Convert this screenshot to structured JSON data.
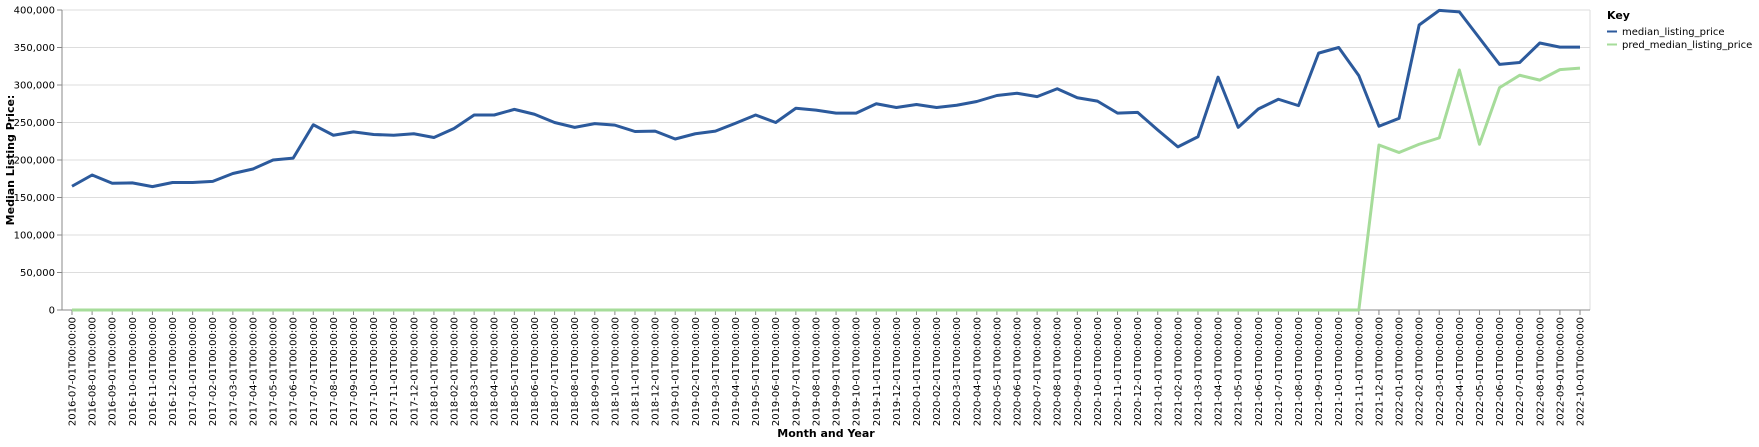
{
  "chart_data": {
    "type": "line",
    "xlabel": "Month and Year",
    "ylabel": "Median Listing Price:",
    "ylim": [
      0,
      400000
    ],
    "yticks": [
      "0",
      "50,000",
      "100,000",
      "150,000",
      "200,000",
      "250,000",
      "300,000",
      "350,000",
      "400,000"
    ],
    "grid": true,
    "legend": {
      "title": "Key",
      "placement": "top-right"
    },
    "x": [
      "2016-07-01T00:00:00",
      "2016-08-01T00:00:00",
      "2016-09-01T00:00:00",
      "2016-10-01T00:00:00",
      "2016-11-01T00:00:00",
      "2016-12-01T00:00:00",
      "2017-01-01T00:00:00",
      "2017-02-01T00:00:00",
      "2017-03-01T00:00:00",
      "2017-04-01T00:00:00",
      "2017-05-01T00:00:00",
      "2017-06-01T00:00:00",
      "2017-07-01T00:00:00",
      "2017-08-01T00:00:00",
      "2017-09-01T00:00:00",
      "2017-10-01T00:00:00",
      "2017-11-01T00:00:00",
      "2017-12-01T00:00:00",
      "2018-01-01T00:00:00",
      "2018-02-01T00:00:00",
      "2018-03-01T00:00:00",
      "2018-04-01T00:00:00",
      "2018-05-01T00:00:00",
      "2018-06-01T00:00:00",
      "2018-07-01T00:00:00",
      "2018-08-01T00:00:00",
      "2018-09-01T00:00:00",
      "2018-10-01T00:00:00",
      "2018-11-01T00:00:00",
      "2018-12-01T00:00:00",
      "2019-01-01T00:00:00",
      "2019-02-01T00:00:00",
      "2019-03-01T00:00:00",
      "2019-04-01T00:00:00",
      "2019-05-01T00:00:00",
      "2019-06-01T00:00:00",
      "2019-07-01T00:00:00",
      "2019-08-01T00:00:00",
      "2019-09-01T00:00:00",
      "2019-10-01T00:00:00",
      "2019-11-01T00:00:00",
      "2019-12-01T00:00:00",
      "2020-01-01T00:00:00",
      "2020-02-01T00:00:00",
      "2020-03-01T00:00:00",
      "2020-04-01T00:00:00",
      "2020-05-01T00:00:00",
      "2020-06-01T00:00:00",
      "2020-07-01T00:00:00",
      "2020-08-01T00:00:00",
      "2020-09-01T00:00:00",
      "2020-10-01T00:00:00",
      "2020-11-01T00:00:00",
      "2020-12-01T00:00:00",
      "2021-01-01T00:00:00",
      "2021-02-01T00:00:00",
      "2021-03-01T00:00:00",
      "2021-04-01T00:00:00",
      "2021-05-01T00:00:00",
      "2021-06-01T00:00:00",
      "2021-07-01T00:00:00",
      "2021-08-01T00:00:00",
      "2021-09-01T00:00:00",
      "2021-10-01T00:00:00",
      "2021-11-01T00:00:00",
      "2021-12-01T00:00:00",
      "2022-01-01T00:00:00",
      "2022-02-01T00:00:00",
      "2022-03-01T00:00:00",
      "2022-04-01T00:00:00",
      "2022-05-01T00:00:00",
      "2022-06-01T00:00:00",
      "2022-07-01T00:00:00",
      "2022-08-01T00:00:00",
      "2022-09-01T00:00:00",
      "2022-10-01T00:00:00"
    ],
    "series": [
      {
        "name": "median_listing_price",
        "color": "#2c5a9c",
        "values": [
          165000,
          180000,
          169000,
          169500,
          164500,
          170000,
          170000,
          171500,
          182000,
          188000,
          200000,
          202500,
          247000,
          233000,
          237500,
          234000,
          233000,
          235000,
          230000,
          242000,
          260000,
          260000,
          267500,
          261000,
          250000,
          243500,
          248500,
          246500,
          238000,
          238500,
          228000,
          235000,
          238500,
          249000,
          260000,
          250000,
          269000,
          266500,
          262500,
          262500,
          275000,
          270000,
          274000,
          270000,
          273000,
          278000,
          286000,
          289000,
          284500,
          295000,
          283000,
          278500,
          262500,
          263500,
          240000,
          217500,
          231000,
          310500,
          243500,
          268000,
          281000,
          272500,
          342500,
          350000,
          312500,
          245000,
          255500,
          380000,
          399500,
          397500,
          362500,
          327500,
          330000,
          356000,
          350500,
          350500
        ]
      },
      {
        "name": "pred_median_listing_price",
        "color": "#a6dc9a",
        "values": [
          0,
          0,
          0,
          0,
          0,
          0,
          0,
          0,
          0,
          0,
          0,
          0,
          0,
          0,
          0,
          0,
          0,
          0,
          0,
          0,
          0,
          0,
          0,
          0,
          0,
          0,
          0,
          0,
          0,
          0,
          0,
          0,
          0,
          0,
          0,
          0,
          0,
          0,
          0,
          0,
          0,
          0,
          0,
          0,
          0,
          0,
          0,
          0,
          0,
          0,
          0,
          0,
          0,
          0,
          0,
          0,
          0,
          0,
          0,
          0,
          0,
          0,
          0,
          0,
          0,
          220000,
          210000,
          221000,
          229500,
          320000,
          221000,
          296500,
          313000,
          306500,
          320500,
          322500
        ]
      }
    ]
  }
}
